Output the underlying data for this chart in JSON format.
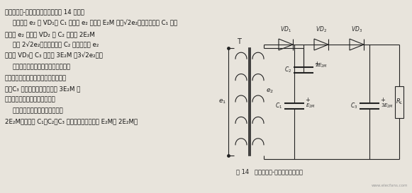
{
  "bg_color": "#e8e4dc",
  "text_color": "#111111",
  "fig_width": 5.81,
  "fig_height": 2.73,
  "dpi": 100,
  "fig_label": "图 14   晶体二极管-电容三倍升压电路",
  "watermark": "www.elecfans.com",
  "line1": "晶体二极管-电容三倍升压电路如图 14 所示。",
  "line2": "第一半周 e₂ 经 VD₁对 C₁ 充电到 e₂ 的峰値 E₂M （即√2e₂）；第二半周 C₁ 上的",
  "line3": "电压与 e₂ 串联经 VD₂ 对 C₂ 充电到 2E₂M",
  "line4": "（即 2√2e₂）；第三半周 C₂ 上的电压与 e₂",
  "line5": "串联经 VD₃对 C₃ 充电至 3E₂M （3√2e₂）。",
  "line6": "在开始几个周期，电容上的电压并不",
  "line7": "能真正充到这么高，但经过数个周期之",
  "line8": "后，C₃ 上的电压漸渐能稳定在 3E₂M 左",
  "line9": "右，这就是三倍压整流之原理。",
  "line10": "每只整流二极管的最大向电压为",
  "line11": "2E₂M。电容器 C₁、C₂、C₃ 上承受的电压分别为 E₂M、 2E₂M、"
}
